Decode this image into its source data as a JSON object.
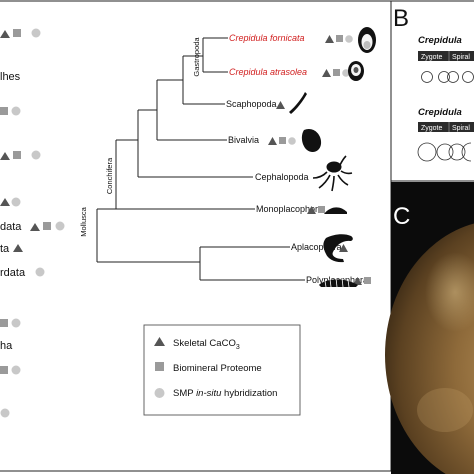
{
  "panels": {
    "b_letter": "B",
    "c_letter": "C"
  },
  "left_fragments": [
    "lhes",
    "data",
    "ta",
    "rdata",
    "ha"
  ],
  "tree": {
    "taxa": [
      {
        "name": "Crepidula fornicata",
        "highlight": true
      },
      {
        "name": "Crepidula atrasolea",
        "highlight": true
      },
      {
        "name": "Scaphopoda",
        "highlight": false
      },
      {
        "name": "Bivalvia",
        "highlight": false
      },
      {
        "name": "Cephalopoda",
        "highlight": false
      },
      {
        "name": "Monoplacophora",
        "highlight": false
      },
      {
        "name": "Aplacophora",
        "highlight": false
      },
      {
        "name": "Polyplacophora",
        "highlight": false
      }
    ],
    "clades": [
      "Gastropoda",
      "Conchifera",
      "Mollusca"
    ]
  },
  "legend": {
    "items": [
      {
        "marker": "triangle",
        "text": "Skeletal CaCO",
        "sub": "3",
        "italic": ""
      },
      {
        "marker": "square",
        "text": "Biomineral Proteome",
        "sub": "",
        "italic": ""
      },
      {
        "marker": "circle",
        "text": " hybridization",
        "sub": "",
        "italic": "SMP in-situ"
      }
    ]
  },
  "panel_b": {
    "rows": [
      {
        "title": "Crepidula",
        "stages": [
          "Zygote",
          "Spiral"
        ]
      },
      {
        "title": "Crepidula",
        "stages": [
          "Zygote",
          "Spiral"
        ]
      }
    ]
  },
  "colors": {
    "highlight": "#d11f1f",
    "marker": "#9a9a9a",
    "triangle": "#555555"
  }
}
